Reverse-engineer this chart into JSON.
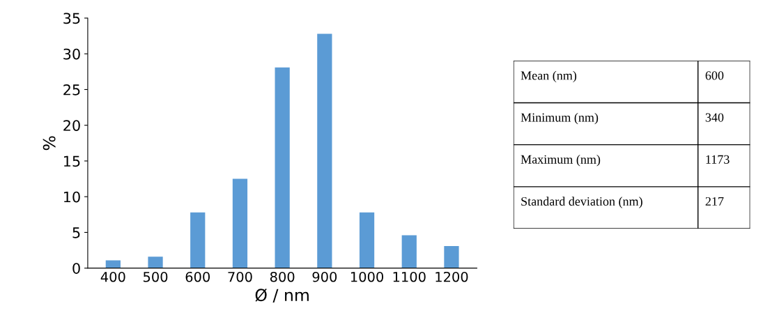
{
  "chart_data": [
    {
      "type": "bar",
      "xlabel": "Ø / nm",
      "ylabel": "%",
      "categories": [
        "400",
        "500",
        "600",
        "700",
        "800",
        "900",
        "1000",
        "1100",
        "1200"
      ],
      "values": [
        1.1,
        1.6,
        7.8,
        12.5,
        28.1,
        32.8,
        7.8,
        4.6,
        3.1
      ],
      "color": "#5b9bd5",
      "ylim": [
        0,
        35
      ],
      "yticks": [
        0,
        5,
        10,
        15,
        20,
        25,
        30,
        35
      ],
      "grid": false
    },
    {
      "type": "other",
      "annotations": [
        "Mean (nm)",
        "600",
        "Minimum (nm)",
        "340",
        "Maximum (nm)",
        "1173",
        "Standard deviation (nm)",
        "217"
      ]
    }
  ]
}
